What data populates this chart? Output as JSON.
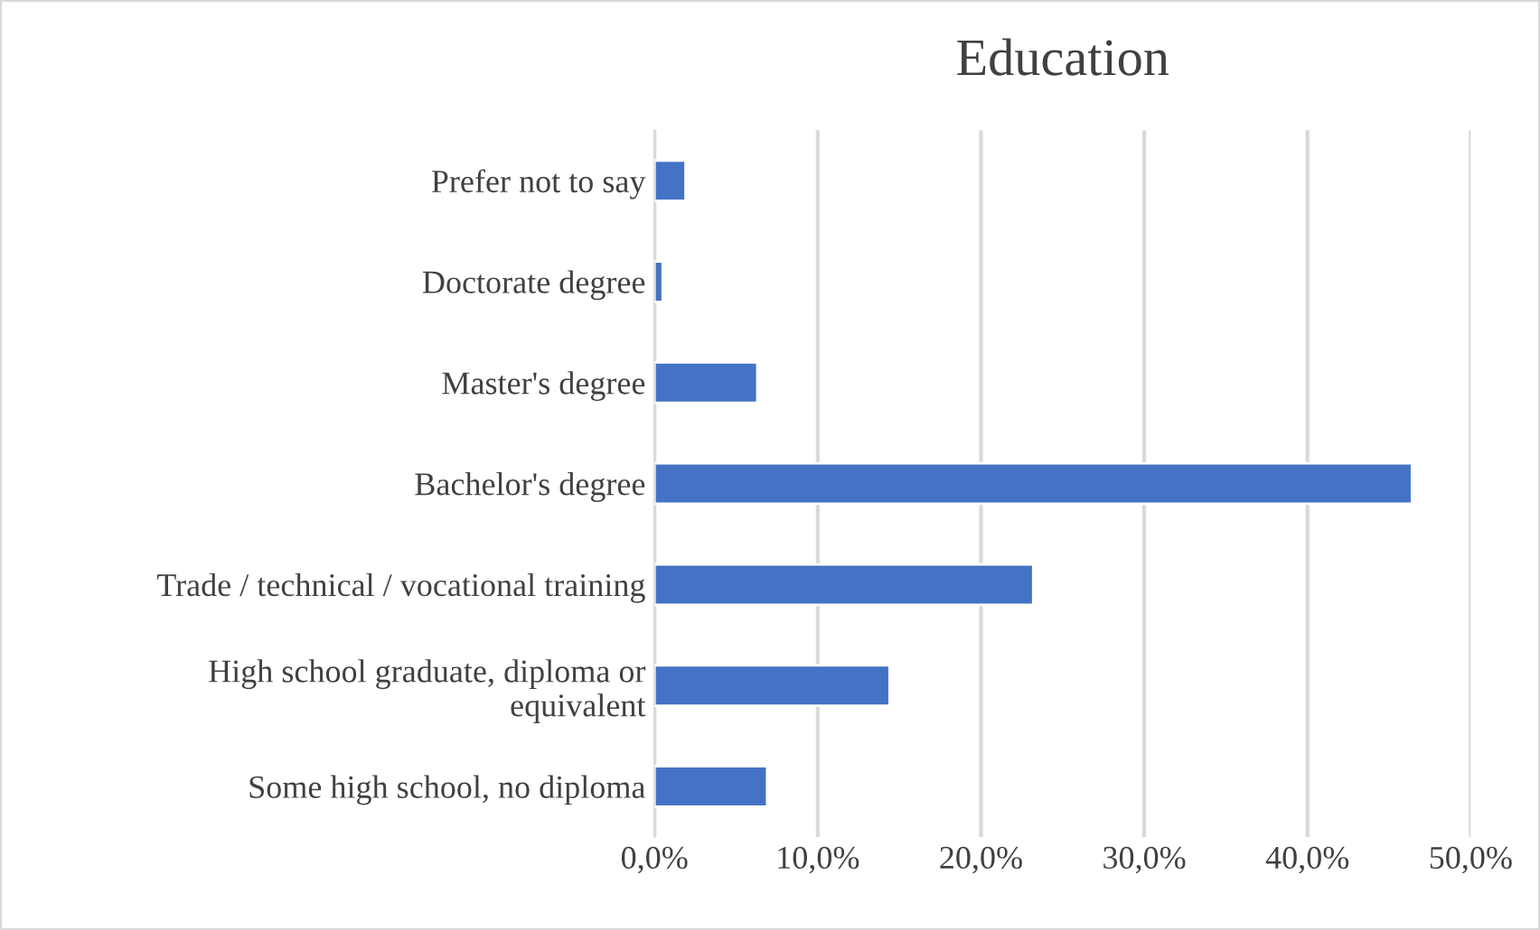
{
  "chart_data": {
    "type": "bar",
    "orientation": "horizontal",
    "title": "Education",
    "categories": [
      "Prefer not to say",
      "Doctorate degree",
      "Master's degree",
      "Bachelor's degree",
      "Trade / technical / vocational training",
      "High school graduate, diploma or\nequivalent",
      "Some high school, no diploma"
    ],
    "values": [
      1.9,
      0.5,
      6.3,
      46.4,
      23.2,
      14.4,
      6.9
    ],
    "color": "#4472c4",
    "xlim": [
      0,
      50
    ],
    "xticks": [
      {
        "value": 0,
        "label": "0,0%"
      },
      {
        "value": 10,
        "label": "10,0%"
      },
      {
        "value": 20,
        "label": "20,0%"
      },
      {
        "value": 30,
        "label": "30,0%"
      },
      {
        "value": 40,
        "label": "40,0%"
      },
      {
        "value": 50,
        "label": "50,0%"
      }
    ],
    "grid": "x"
  }
}
